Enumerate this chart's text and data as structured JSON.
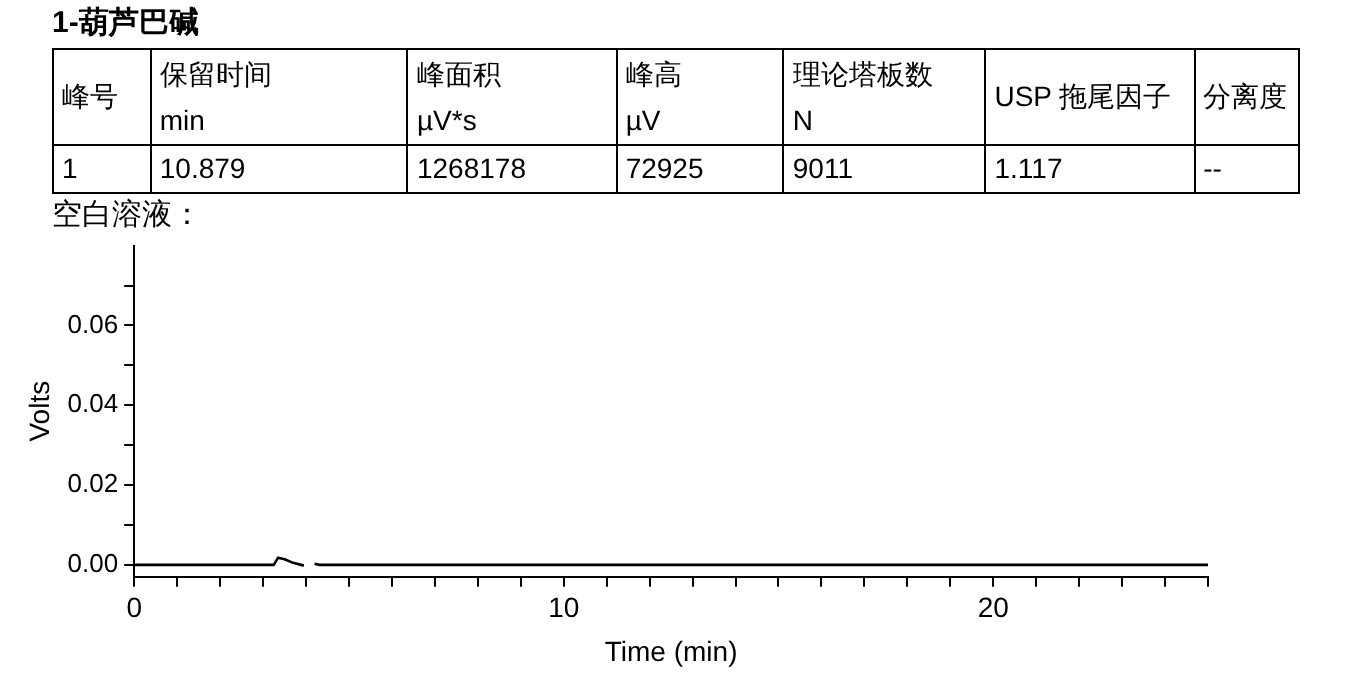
{
  "chart_data": [
    {
      "type": "other",
      "title": "1-葫芦巴碱",
      "annotations": [
        "峰号",
        "保留时间\nmin",
        "峰面积\nµV*s",
        "峰高\nµV",
        "理论塔板数\nN",
        "USP 拖尾因子",
        "分离度",
        "1",
        "10.879",
        "1268178",
        "72925",
        "9011",
        "1.117",
        "--"
      ]
    },
    {
      "type": "line",
      "title": "空白溶液：",
      "xlabel": "Time (min)",
      "ylabel": "Volts",
      "grid": false,
      "legend": false,
      "marker": "none",
      "line_style": "solid",
      "xlim": [
        0,
        25
      ],
      "xticks": [
        0,
        {
          "value": 1,
          "label": null
        },
        {
          "value": 2,
          "label": null
        },
        {
          "value": 3,
          "label": null
        },
        {
          "value": 4,
          "label": null
        },
        {
          "value": 5,
          "label": null
        },
        {
          "value": 6,
          "label": null
        },
        {
          "value": 7,
          "label": null
        },
        {
          "value": 8,
          "label": null
        },
        {
          "value": 9,
          "label": null
        },
        10,
        {
          "value": 11,
          "label": null
        },
        {
          "value": 12,
          "label": null
        },
        {
          "value": 13,
          "label": null
        },
        {
          "value": 14,
          "label": null
        },
        {
          "value": 15,
          "label": null
        },
        {
          "value": 16,
          "label": null
        },
        {
          "value": 17,
          "label": null
        },
        {
          "value": 18,
          "label": null
        },
        {
          "value": 19,
          "label": null
        },
        20,
        {
          "value": 21,
          "label": null
        },
        {
          "value": 22,
          "label": null
        },
        {
          "value": 23,
          "label": null
        },
        {
          "value": 24,
          "label": null
        },
        {
          "value": 25,
          "label": null
        }
      ],
      "ylim": [
        -0.003,
        0.08
      ],
      "yticks": [
        {
          "value": 0,
          "label": "0.00"
        },
        {
          "value": 0.01,
          "label": null
        },
        {
          "value": 0.02,
          "label": "0.02"
        },
        {
          "value": 0.03,
          "label": null
        },
        {
          "value": 0.04,
          "label": "0.04"
        },
        {
          "value": 0.05,
          "label": null
        },
        {
          "value": 0.06,
          "label": "0.06"
        },
        {
          "value": 0.07,
          "label": null
        }
      ],
      "series": [
        {
          "color": "#000000",
          "x": [
            0,
            3.25,
            3.35,
            3.5,
            3.7,
            3.95,
            4.05,
            4.2,
            4.3,
            25
          ],
          "values": [
            0,
            0,
            0.0018,
            0.0014,
            0.0005,
            -0.0002,
            null,
            0.0003,
            0,
            0
          ]
        }
      ]
    }
  ]
}
